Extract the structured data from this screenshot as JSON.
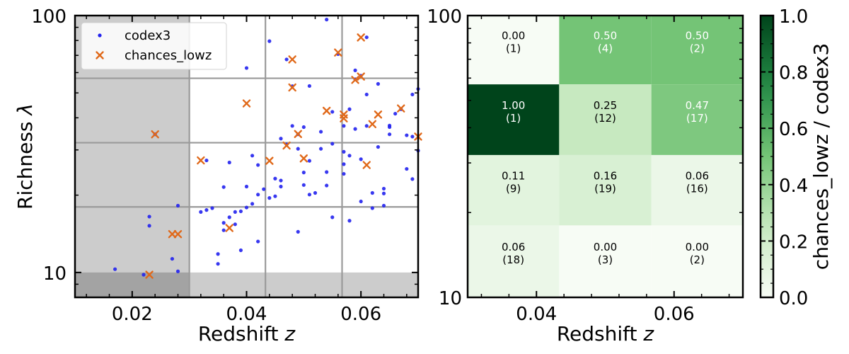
{
  "chart_data": [
    {
      "type": "scatter",
      "xlabel_main": "Redshift ",
      "xlabel_var": "z",
      "ylabel_main": "Richness ",
      "ylabel_var": "λ",
      "xlim": [
        0.01,
        0.07
      ],
      "ylim": [
        8,
        100
      ],
      "yscale": "log",
      "x_ticks": [
        0.02,
        0.04,
        0.06
      ],
      "x_tick_labels": [
        "0.02",
        "0.04",
        "0.06"
      ],
      "y_ticks": [
        10,
        100
      ],
      "y_tick_labels": [
        "10",
        "100"
      ],
      "grid": true,
      "grid_x": [
        0.03,
        0.0433,
        0.0567
      ],
      "grid_y": [
        18,
        32,
        57
      ],
      "shaded_regions": [
        {
          "description": "z < 0.03",
          "x": [
            0.01,
            0.03
          ],
          "y": [
            8,
            100
          ]
        },
        {
          "description": "lambda < 10",
          "x": [
            0.01,
            0.07
          ],
          "y": [
            8,
            10
          ]
        }
      ],
      "legend": {
        "placement": "top-left",
        "entries": [
          {
            "label": "codex3",
            "marker": "dot",
            "color": "#2222ee"
          },
          {
            "label": "chances_lowz",
            "marker": "x",
            "color": "#e0691a"
          }
        ]
      },
      "series": [
        {
          "name": "codex3",
          "color": "#2222ee",
          "points": [
            [
              0.017,
              10.3
            ],
            [
              0.022,
              9.8
            ],
            [
              0.023,
              15.2
            ],
            [
              0.023,
              16.5
            ],
            [
              0.024,
              34.5
            ],
            [
              0.027,
              11.3
            ],
            [
              0.028,
              10.1
            ],
            [
              0.028,
              18.2
            ],
            [
              0.032,
              17.2
            ],
            [
              0.033,
              17.5
            ],
            [
              0.033,
              27.3
            ],
            [
              0.034,
              17.8
            ],
            [
              0.035,
              11.8
            ],
            [
              0.035,
              10.8
            ],
            [
              0.036,
              15.6
            ],
            [
              0.036,
              21.5
            ],
            [
              0.036,
              14.6
            ],
            [
              0.037,
              16.4
            ],
            [
              0.037,
              26.8
            ],
            [
              0.038,
              17.2
            ],
            [
              0.038,
              15.4
            ],
            [
              0.039,
              12.2
            ],
            [
              0.039,
              17.3
            ],
            [
              0.04,
              21.6
            ],
            [
              0.04,
              17.9
            ],
            [
              0.04,
              62.5
            ],
            [
              0.041,
              18.5
            ],
            [
              0.041,
              28.5
            ],
            [
              0.042,
              13.2
            ],
            [
              0.042,
              26.2
            ],
            [
              0.042,
              20.1
            ],
            [
              0.043,
              21.1
            ],
            [
              0.044,
              19.5
            ],
            [
              0.044,
              79.5
            ],
            [
              0.045,
              23.2
            ],
            [
              0.045,
              19.8
            ],
            [
              0.046,
              33.2
            ],
            [
              0.046,
              21.6
            ],
            [
              0.046,
              22.8
            ],
            [
              0.047,
              67.5
            ],
            [
              0.047,
              31.5
            ],
            [
              0.048,
              53.1
            ],
            [
              0.048,
              37.2
            ],
            [
              0.049,
              30.3
            ],
            [
              0.049,
              14.4
            ],
            [
              0.049,
              34.5
            ],
            [
              0.05,
              36.8
            ],
            [
              0.05,
              24.5
            ],
            [
              0.05,
              21.9
            ],
            [
              0.051,
              27.2
            ],
            [
              0.051,
              20.1
            ],
            [
              0.051,
              53.2
            ],
            [
              0.052,
              20.4
            ],
            [
              0.053,
              35.3
            ],
            [
              0.053,
              30.3
            ],
            [
              0.054,
              96.5
            ],
            [
              0.054,
              24.6
            ],
            [
              0.054,
              21.8
            ],
            [
              0.055,
              16.4
            ],
            [
              0.055,
              31.7
            ],
            [
              0.055,
              42.2
            ],
            [
              0.056,
              70.8
            ],
            [
              0.057,
              29.5
            ],
            [
              0.057,
              37.2
            ],
            [
              0.057,
              26.4
            ],
            [
              0.057,
              24.2
            ],
            [
              0.058,
              43.2
            ],
            [
              0.058,
              15.9
            ],
            [
              0.058,
              28.5
            ],
            [
              0.059,
              36.2
            ],
            [
              0.059,
              56.5
            ],
            [
              0.059,
              61.2
            ],
            [
              0.06,
              58.3
            ],
            [
              0.06,
              18.9
            ],
            [
              0.06,
              27.6
            ],
            [
              0.061,
              49.3
            ],
            [
              0.061,
              82.3
            ],
            [
              0.061,
              37.2
            ],
            [
              0.062,
              17.8
            ],
            [
              0.062,
              20.4
            ],
            [
              0.063,
              54.2
            ],
            [
              0.063,
              30.8
            ],
            [
              0.064,
              21.2
            ],
            [
              0.064,
              20.3
            ],
            [
              0.064,
              18.2
            ],
            [
              0.065,
              36.8
            ],
            [
              0.065,
              34.5
            ],
            [
              0.065,
              37.3
            ],
            [
              0.066,
              41.5
            ],
            [
              0.067,
              43.2
            ],
            [
              0.068,
              34.2
            ],
            [
              0.068,
              25.3
            ],
            [
              0.069,
              49.3
            ],
            [
              0.069,
              33.8
            ],
            [
              0.07,
              51.8
            ],
            [
              0.069,
              23.1
            ],
            [
              0.07,
              29.8
            ]
          ]
        },
        {
          "name": "chances_lowz",
          "color": "#e0691a",
          "points": [
            [
              0.023,
              9.8
            ],
            [
              0.024,
              34.5
            ],
            [
              0.027,
              14.1
            ],
            [
              0.028,
              14.1
            ],
            [
              0.032,
              27.3
            ],
            [
              0.037,
              14.9
            ],
            [
              0.04,
              45.5
            ],
            [
              0.044,
              27.2
            ],
            [
              0.047,
              31.2
            ],
            [
              0.048,
              52.5
            ],
            [
              0.048,
              67.5
            ],
            [
              0.049,
              34.6
            ],
            [
              0.05,
              27.8
            ],
            [
              0.054,
              42.6
            ],
            [
              0.056,
              71.8
            ],
            [
              0.057,
              39.8
            ],
            [
              0.057,
              41.2
            ],
            [
              0.059,
              56.2
            ],
            [
              0.06,
              57.9
            ],
            [
              0.06,
              82.2
            ],
            [
              0.061,
              26.2
            ],
            [
              0.062,
              37.8
            ],
            [
              0.063,
              41.2
            ],
            [
              0.067,
              43.5
            ],
            [
              0.07,
              33.8
            ]
          ]
        }
      ]
    },
    {
      "type": "heatmap",
      "xlabel_main": "Redshift ",
      "xlabel_var": "z",
      "xlim": [
        0.03,
        0.07
      ],
      "ylim": [
        10,
        100
      ],
      "yscale": "log",
      "x_ticks": [
        0.04,
        0.06
      ],
      "x_tick_labels": [
        "0.04",
        "0.06"
      ],
      "y_ticks": [
        10,
        100
      ],
      "y_tick_labels": [
        "10",
        "100"
      ],
      "x_edges": [
        0.03,
        0.0433,
        0.0567,
        0.07
      ],
      "y_edges": [
        10,
        18,
        32,
        57,
        100
      ],
      "colormap": "Greens",
      "cells": [
        {
          "row": 0,
          "col": 0,
          "fraction": "0.00",
          "count": "(1)",
          "value": 0.0
        },
        {
          "row": 0,
          "col": 1,
          "fraction": "0.50",
          "count": "(4)",
          "value": 0.5
        },
        {
          "row": 0,
          "col": 2,
          "fraction": "0.50",
          "count": "(2)",
          "value": 0.5
        },
        {
          "row": 1,
          "col": 0,
          "fraction": "1.00",
          "count": "(1)",
          "value": 1.0
        },
        {
          "row": 1,
          "col": 1,
          "fraction": "0.25",
          "count": "(12)",
          "value": 0.25
        },
        {
          "row": 1,
          "col": 2,
          "fraction": "0.47",
          "count": "(17)",
          "value": 0.47
        },
        {
          "row": 2,
          "col": 0,
          "fraction": "0.11",
          "count": "(9)",
          "value": 0.11
        },
        {
          "row": 2,
          "col": 1,
          "fraction": "0.16",
          "count": "(19)",
          "value": 0.16
        },
        {
          "row": 2,
          "col": 2,
          "fraction": "0.06",
          "count": "(16)",
          "value": 0.06
        },
        {
          "row": 3,
          "col": 0,
          "fraction": "0.06",
          "count": "(18)",
          "value": 0.06
        },
        {
          "row": 3,
          "col": 1,
          "fraction": "0.00",
          "count": "(3)",
          "value": 0.0
        },
        {
          "row": 3,
          "col": 2,
          "fraction": "0.00",
          "count": "(2)",
          "value": 0.0
        }
      ],
      "colorbar": {
        "label": "chances_lowz / codex3",
        "range": [
          0,
          1
        ],
        "ticks": [
          0.0,
          0.2,
          0.4,
          0.6,
          0.8,
          1.0
        ],
        "tick_labels": [
          "0.0",
          "0.2",
          "0.4",
          "0.6",
          "0.8",
          "1.0"
        ]
      }
    }
  ]
}
